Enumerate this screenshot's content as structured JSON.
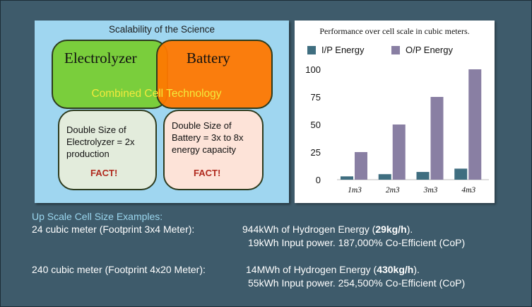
{
  "left_panel": {
    "title": "Scalability of the Science",
    "electrolyzer": "Electrolyzer",
    "battery": "Battery",
    "combined": "Combined Cell Technology",
    "fact_boxes": [
      {
        "lines": [
          "Double Size of",
          "Electrolyzer = 2x",
          "production"
        ],
        "tag": "FACT!"
      },
      {
        "lines": [
          "Double Size of",
          "Battery = 3x to 8x",
          "energy capacity"
        ],
        "tag": "FACT!"
      }
    ]
  },
  "chart_data": {
    "type": "bar",
    "title": "Performance over cell scale in cubic meters.",
    "categories": [
      "1m3",
      "2m3",
      "3m3",
      "4m3"
    ],
    "series": [
      {
        "name": "I/P Energy",
        "values": [
          3,
          5,
          7,
          10
        ],
        "color": "#3f6e80"
      },
      {
        "name": "O/P Energy",
        "values": [
          25,
          50,
          75,
          100
        ],
        "color": "#897fa3"
      }
    ],
    "yticks": [
      0,
      25,
      50,
      75,
      100
    ],
    "ylim": [
      0,
      100
    ],
    "xlabel": "",
    "ylabel": "",
    "grid": false,
    "legend": "top"
  },
  "bottom": {
    "title": "Up Scale Cell Size Examples:",
    "example1": {
      "size": "24 cubic meter (Footprint 3x4 Meter):",
      "energy_pre": "944kWh of Hydrogen Energy (",
      "energy_rate": "29kg/h",
      "energy_post": ").",
      "input": "19kWh Input power. 187,000% Co-Efficient (CoP)"
    },
    "example2": {
      "size": "240 cubic meter (Footprint 4x20 Meter):",
      "energy_pre": "14MWh of Hydrogen Energy (",
      "energy_rate": "430kg/h",
      "energy_post": ").",
      "input": "55kWh Input power. 254,500% Co-Efficient (CoP)"
    }
  },
  "colors": {
    "background": "#3e5b6b",
    "left_panel": "#9fd6f0",
    "electrolyzer": "#78cd32",
    "battery": "#ff7800",
    "combined_text": "#f2ea3c",
    "fact_tag": "#b02a1e",
    "bottom_title": "#9bd7ef"
  }
}
